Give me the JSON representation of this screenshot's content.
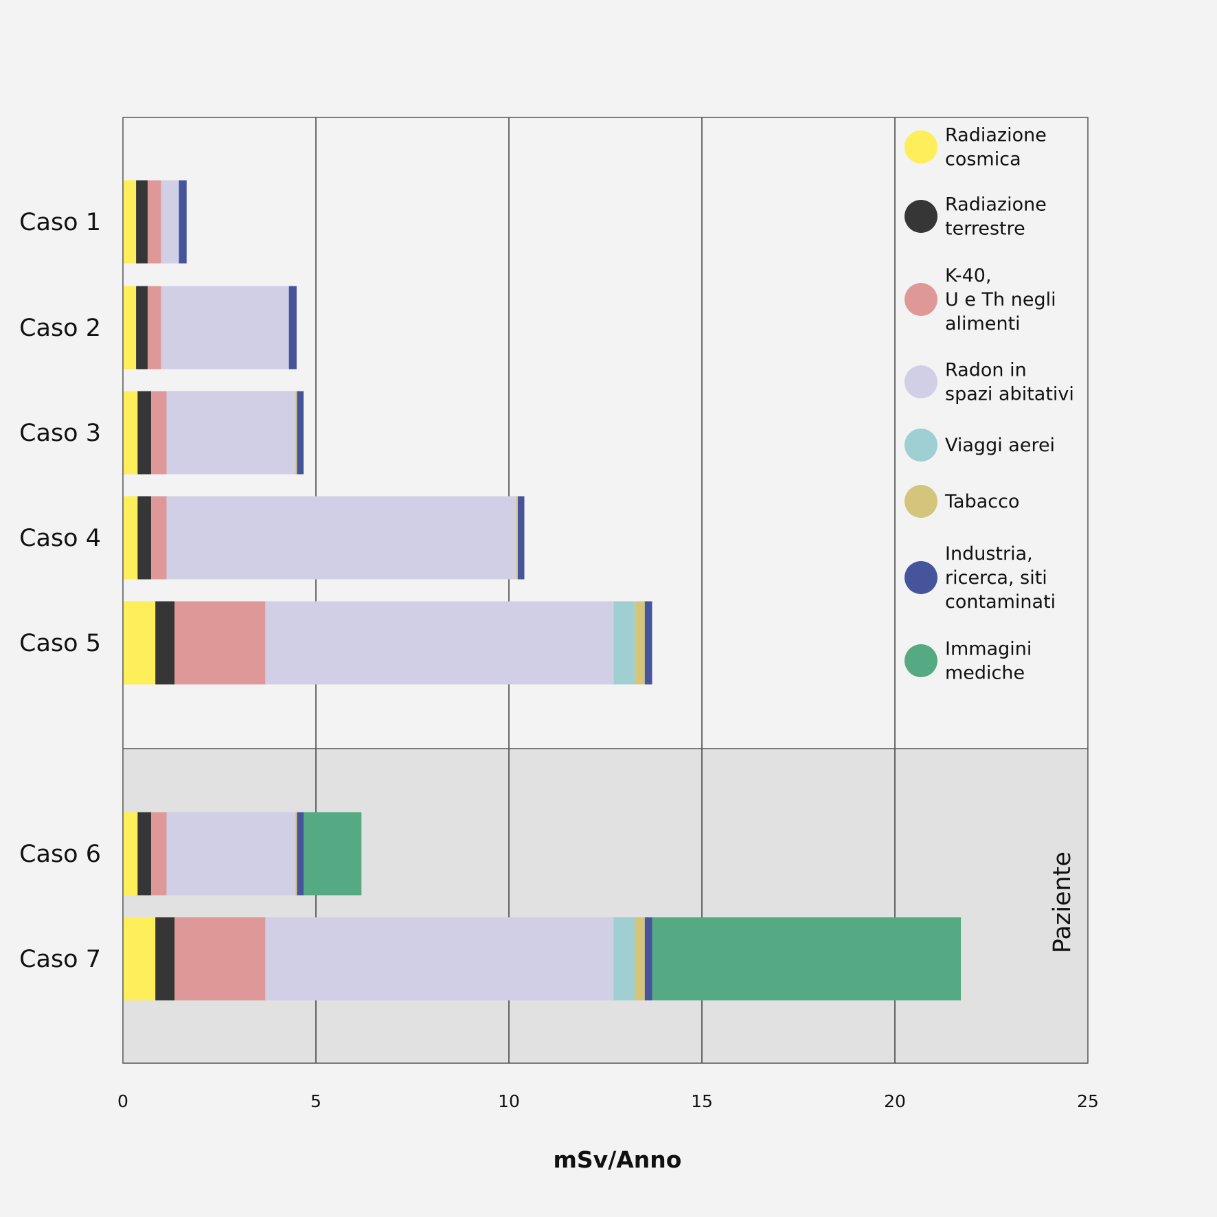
{
  "chart_data": {
    "type": "bar",
    "orientation": "horizontal",
    "stacked": true,
    "xlabel": "mSv/Anno",
    "xlim": [
      0,
      25
    ],
    "xticks": [
      "0",
      "5",
      "10",
      "15",
      "20",
      "25"
    ],
    "grid": true,
    "legend_position": "right",
    "group_label": "Paziente",
    "categories": [
      "Caso 1",
      "Caso 2",
      "Caso 3",
      "Caso 4",
      "Caso 5",
      "Caso 6",
      "Caso 7"
    ],
    "patient_categories": [
      "Caso 6",
      "Caso 7"
    ],
    "series": [
      {
        "name": "Radiazione cosmica",
        "legend_lines": [
          "Radiazione",
          "cosmica"
        ],
        "color": "#fdee5a",
        "values": [
          0.34,
          0.34,
          0.38,
          0.38,
          0.84,
          0.38,
          0.84
        ]
      },
      {
        "name": "Radiazione terrestre",
        "legend_lines": [
          "Radiazione",
          "terrestre"
        ],
        "color": "#363636",
        "values": [
          0.3,
          0.3,
          0.35,
          0.35,
          0.5,
          0.35,
          0.5
        ]
      },
      {
        "name": "K-40, U e Th negli alimenti",
        "legend_lines": [
          "K-40,",
          "U e Th negli",
          "alimenti"
        ],
        "color": "#df9898",
        "values": [
          0.35,
          0.35,
          0.4,
          0.4,
          2.35,
          0.4,
          2.35
        ]
      },
      {
        "name": "Radon in spazi abitativi",
        "legend_lines": [
          "Radon in",
          "spazi abitativi"
        ],
        "color": "#d0cfe6",
        "values": [
          0.46,
          3.31,
          3.34,
          9.06,
          9.02,
          3.34,
          9.02
        ]
      },
      {
        "name": "Viaggi aerei",
        "legend_lines": [
          "Viaggi aerei"
        ],
        "color": "#9fcfd2",
        "values": [
          0,
          0,
          0,
          0,
          0.55,
          0,
          0.55
        ]
      },
      {
        "name": "Tabacco",
        "legend_lines": [
          "Tabacco"
        ],
        "color": "#d3c57b",
        "values": [
          0,
          0,
          0.04,
          0.04,
          0.26,
          0.04,
          0.26
        ]
      },
      {
        "name": "Industria, ricerca, siti contaminati",
        "legend_lines": [
          "Industria,",
          "ricerca, siti",
          "contaminati"
        ],
        "color": "#46549c",
        "values": [
          0.2,
          0.2,
          0.17,
          0.17,
          0.19,
          0.17,
          0.19
        ]
      },
      {
        "name": "Immagini mediche",
        "legend_lines": [
          "Immagini",
          "mediche"
        ],
        "color": "#55aa83",
        "values": [
          0,
          0,
          0,
          0,
          0,
          1.5,
          8.0
        ]
      }
    ]
  }
}
